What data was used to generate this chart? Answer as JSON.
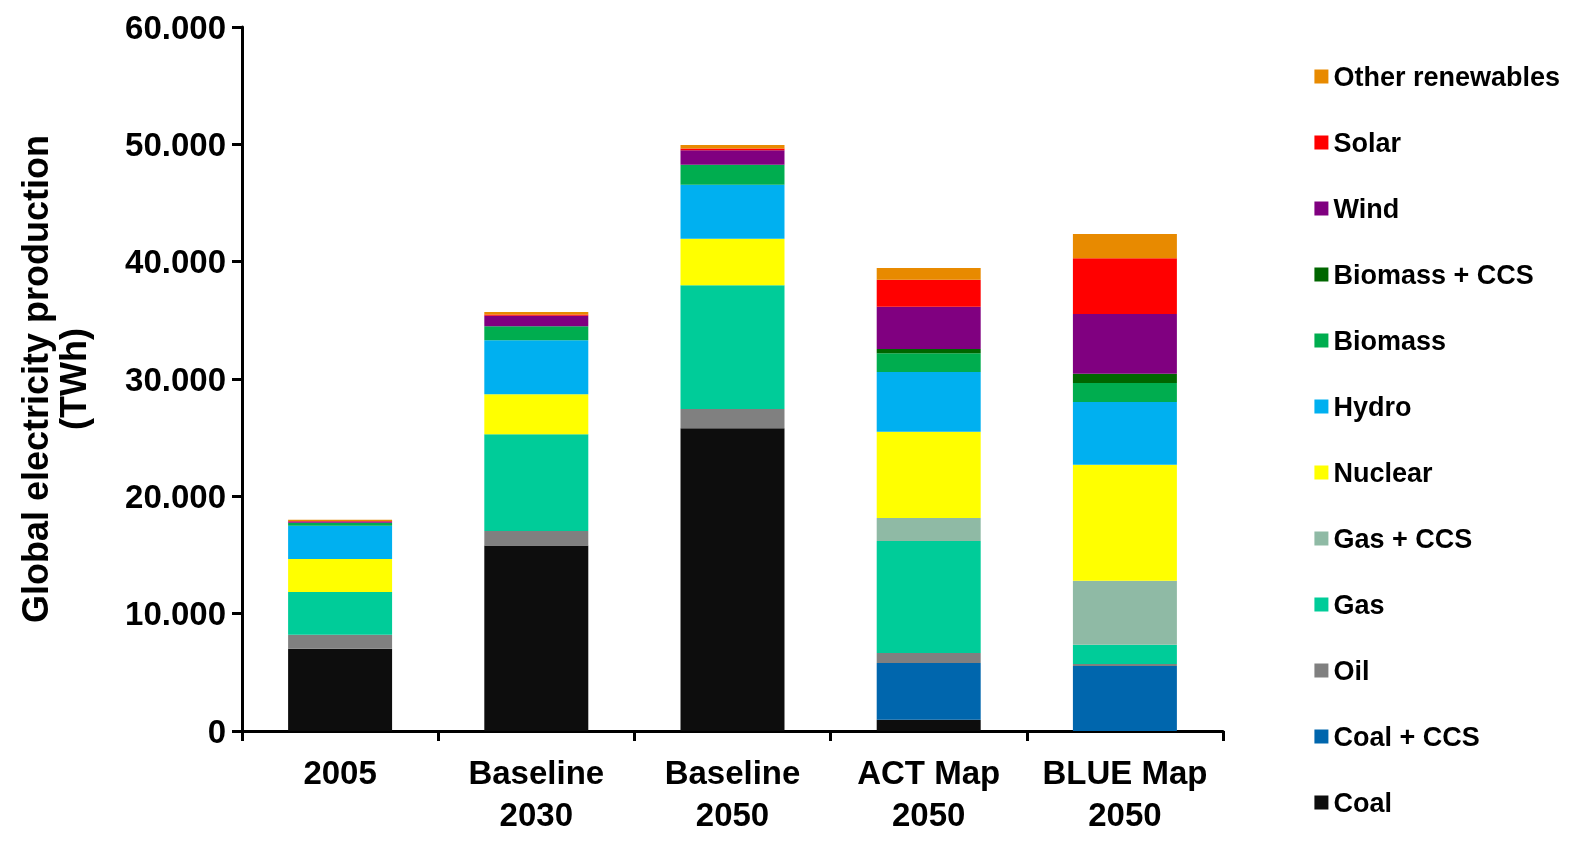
{
  "chart_data": {
    "type": "bar",
    "stacked": true,
    "ylabel": "Global electricity production\n(TWh)",
    "categories": [
      "2005",
      "Baseline\n2030",
      "Baseline\n2050",
      "ACT Map\n2050",
      "BLUE Map\n2050"
    ],
    "ylim": [
      0,
      60000
    ],
    "yticks": [
      {
        "value": 0,
        "label": "0"
      },
      {
        "value": 10000,
        "label": "10.000"
      },
      {
        "value": 20000,
        "label": "20.000"
      },
      {
        "value": 30000,
        "label": "30.000"
      },
      {
        "value": 40000,
        "label": "40.000"
      },
      {
        "value": 50000,
        "label": "50.000"
      },
      {
        "value": 60000,
        "label": "60.000"
      }
    ],
    "grid": false,
    "legend": "right",
    "series": [
      {
        "name": "Coal",
        "color": "#0d0d0d",
        "values": [
          7000,
          15800,
          25800,
          950,
          0
        ]
      },
      {
        "name": "Coal + CCS",
        "color": "#0066ad",
        "values": [
          0,
          0,
          0,
          4850,
          5550
        ]
      },
      {
        "name": "Oil",
        "color": "#808080",
        "values": [
          1200,
          1250,
          1650,
          850,
          150
        ]
      },
      {
        "name": "Gas",
        "color": "#00cc99",
        "values": [
          3650,
          8250,
          10550,
          9550,
          1650
        ]
      },
      {
        "name": "Gas + CCS",
        "color": "#8fbaa5",
        "values": [
          0,
          0,
          0,
          1950,
          5450
        ]
      },
      {
        "name": "Nuclear",
        "color": "#ffff00",
        "values": [
          2800,
          3400,
          3950,
          7350,
          9900
        ]
      },
      {
        "name": "Hydro",
        "color": "#00b0f0",
        "values": [
          2850,
          4600,
          4600,
          5100,
          5350
        ]
      },
      {
        "name": "Biomass",
        "color": "#00ad4f",
        "values": [
          250,
          1200,
          1700,
          1600,
          1600
        ]
      },
      {
        "name": "Biomass + CCS",
        "color": "#006600",
        "values": [
          0,
          0,
          0,
          350,
          800
        ]
      },
      {
        "name": "Wind",
        "color": "#800080",
        "values": [
          100,
          900,
          1250,
          3600,
          5100
        ]
      },
      {
        "name": "Solar",
        "color": "#ff0000",
        "values": [
          50,
          100,
          150,
          2300,
          4750
        ]
      },
      {
        "name": "Other renewables",
        "color": "#e88a00",
        "values": [
          100,
          200,
          300,
          1000,
          2050
        ]
      }
    ]
  }
}
